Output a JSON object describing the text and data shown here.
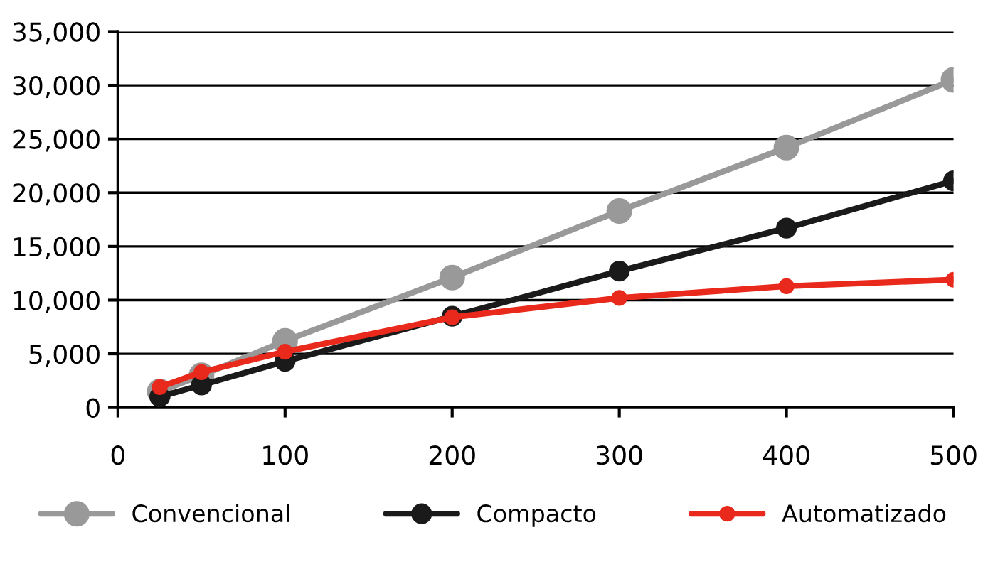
{
  "chart_data": {
    "type": "line",
    "x": [
      25,
      50,
      100,
      200,
      300,
      400,
      500
    ],
    "series": [
      {
        "name": "Convencional",
        "color": "#999999",
        "values": [
          1500,
          3000,
          6200,
          12100,
          18300,
          24200,
          30500
        ]
      },
      {
        "name": "Compacto",
        "color": "#1a1a1a",
        "values": [
          1000,
          2100,
          4300,
          8500,
          12700,
          16700,
          21100
        ]
      },
      {
        "name": "Automatizado",
        "color": "#e8291c",
        "values": [
          1900,
          3300,
          5200,
          8400,
          10200,
          11300,
          11900
        ]
      }
    ],
    "xlim": [
      0,
      500
    ],
    "xticks": [
      0,
      100,
      200,
      300,
      400,
      500
    ],
    "ylim": [
      0,
      35000
    ],
    "yticks": [
      0,
      {
        "value": 5000,
        "label": "5,000"
      },
      {
        "value": 10000,
        "label": "10,000"
      },
      {
        "value": 15000,
        "label": "15,000"
      },
      {
        "value": 20000,
        "label": "20,000"
      },
      {
        "value": 25000,
        "label": "25,000"
      },
      {
        "value": 30000,
        "label": "30,000"
      },
      {
        "value": 35000,
        "label": "35,000"
      }
    ],
    "grid": "y",
    "legend": "bottom",
    "marker": "circle",
    "line_style": "solid"
  }
}
